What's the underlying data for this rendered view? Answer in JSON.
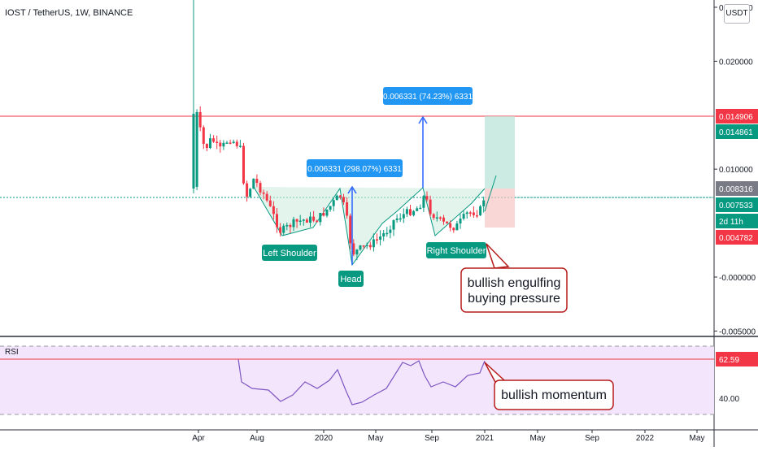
{
  "chart_title": "IOST / TetherUS, 1W, BINANCE",
  "price_unit": "USDT",
  "rsi_title": "RSI",
  "chart_data": {
    "type": "candlestick",
    "price_ticks": [
      "0.025000",
      "0.020000",
      "0.010000",
      "-0.000000",
      "-0.005000"
    ],
    "price_tick_values": [
      0.025,
      0.02,
      0.01,
      0.0,
      -0.005
    ],
    "time_labels": [
      "Apr",
      "Aug",
      "2020",
      "May",
      "Sep",
      "2021",
      "May",
      "Sep",
      "2022",
      "May"
    ],
    "price_tags": [
      {
        "text": "0.014906",
        "value": 0.014906,
        "color": "#f23645"
      },
      {
        "text": "0.014861",
        "value": 0.014861,
        "color": "#089981"
      },
      {
        "text": "0.008316",
        "value": 0.008316,
        "color": "#787b86"
      },
      {
        "text": "0.007533",
        "value": 0.007533,
        "color": "#089981"
      },
      {
        "text": "2d 11h",
        "value": 0.0058,
        "color": "#089981"
      },
      {
        "text": "0.004782",
        "value": 0.004782,
        "color": "#f23645"
      }
    ],
    "horizontal_line": {
      "value": 0.014906,
      "color": "#f23645"
    },
    "neckline_value": 0.00753,
    "pattern_labels": [
      {
        "text": "Left Shoulder",
        "color": "#089981"
      },
      {
        "text": "Head",
        "color": "#089981"
      },
      {
        "text": "Right Shoulder",
        "color": "#089981"
      }
    ],
    "measure_labels": [
      {
        "text": "0.006331 (298.07%) 6331"
      },
      {
        "text": "0.006331 (74.23%) 6331"
      }
    ],
    "callouts": [
      {
        "text_lines": [
          "bullish engulfing",
          "buying pressure"
        ]
      },
      {
        "text_lines": [
          "bullish momentum"
        ]
      }
    ],
    "position": {
      "entry": 0.008316,
      "target": 0.014906,
      "stop": 0.004782
    },
    "rsi": {
      "ticks": [
        "62.59",
        "40.00"
      ],
      "tick_values": [
        62.59,
        40.0
      ],
      "band": [
        30,
        70
      ],
      "last": 62.59
    }
  }
}
